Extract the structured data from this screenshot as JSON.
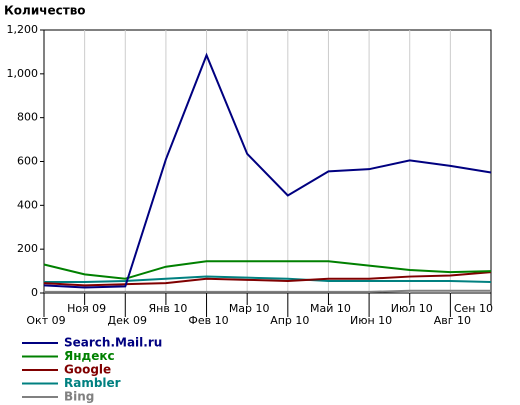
{
  "chart_data": {
    "type": "line",
    "title": "Количество",
    "categories": [
      "Окт 09",
      "Ноя 09",
      "Дек 09",
      "Янв 10",
      "Фев 10",
      "Мар 10",
      "Апр 10",
      "Май 10",
      "Июн 10",
      "Июл 10",
      "Авг 10",
      "Сен 10"
    ],
    "series": [
      {
        "name": "Search.Mail.ru",
        "color": "#000080",
        "values": [
          35,
          25,
          30,
          610,
          1085,
          635,
          445,
          555,
          565,
          605,
          580,
          550
        ]
      },
      {
        "name": "Яндекс",
        "color": "#008000",
        "values": [
          130,
          85,
          65,
          120,
          145,
          145,
          145,
          145,
          125,
          105,
          95,
          100
        ]
      },
      {
        "name": "Google",
        "color": "#800000",
        "values": [
          45,
          35,
          40,
          45,
          65,
          60,
          55,
          65,
          65,
          75,
          80,
          95
        ]
      },
      {
        "name": "Rambler",
        "color": "#008080",
        "values": [
          50,
          50,
          55,
          65,
          75,
          70,
          65,
          55,
          55,
          55,
          55,
          50
        ]
      },
      {
        "name": "Bing",
        "color": "#808080",
        "values": [
          5,
          5,
          5,
          5,
          5,
          5,
          5,
          5,
          5,
          10,
          10,
          10
        ]
      }
    ],
    "ylim": [
      0,
      1200
    ],
    "yticks": [
      0,
      200,
      400,
      600,
      800,
      {
        "value": 1000,
        "label": "1,000"
      },
      {
        "value": 1200,
        "label": "1,200"
      }
    ],
    "grid": "x"
  }
}
